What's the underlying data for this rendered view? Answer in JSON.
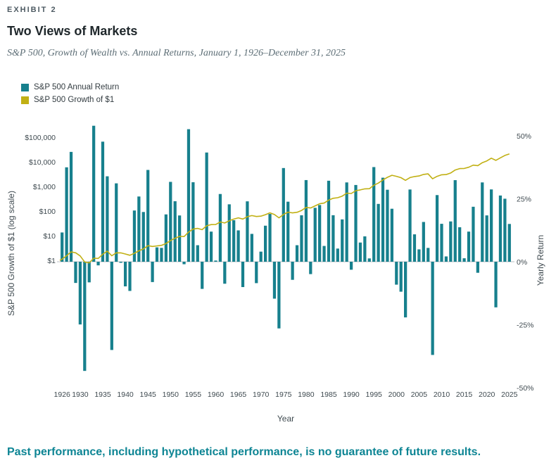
{
  "exhibit_label": "EXHIBIT 2",
  "title": "Two Views of Markets",
  "subtitle": "S&P 500, Growth of Wealth vs. Annual Returns, January 1, 1926–December 31, 2025",
  "footnote": "Past performance, including hypothetical performance, is no guarantee of future results.",
  "colors": {
    "bar": "#17808d",
    "line": "#c1b014",
    "footnote": "#0d8594",
    "zero_line": "#a7adb0"
  },
  "legend": {
    "items": [
      {
        "label": "S&P 500 Annual Return",
        "color": "#17808d"
      },
      {
        "label": "S&P 500 Growth of $1",
        "color": "#c1b014"
      }
    ]
  },
  "chart_data": {
    "type": "bar",
    "title": "Two Views of Markets",
    "x_start_year": 1926,
    "x_end_year": 2025,
    "series": [
      {
        "name": "S&P 500 Annual Return",
        "type": "bar",
        "axis": "right",
        "unit": "%",
        "values": [
          11.62,
          37.49,
          43.61,
          -8.42,
          -24.9,
          -43.34,
          -8.19,
          53.99,
          -1.44,
          47.67,
          33.92,
          -35.03,
          31.12,
          -0.41,
          -9.78,
          -11.59,
          20.34,
          25.9,
          19.75,
          36.44,
          -8.07,
          5.71,
          5.5,
          18.79,
          31.71,
          24.02,
          18.37,
          -0.99,
          52.62,
          31.56,
          6.56,
          -10.78,
          43.36,
          11.96,
          0.47,
          26.89,
          -8.73,
          22.8,
          16.48,
          12.45,
          -10.06,
          23.98,
          11.06,
          -8.5,
          4.01,
          14.31,
          18.98,
          -14.66,
          -26.47,
          37.2,
          23.84,
          -7.18,
          6.56,
          18.44,
          32.42,
          -4.91,
          21.41,
          22.51,
          6.27,
          32.16,
          18.47,
          5.23,
          16.81,
          31.49,
          -3.17,
          30.47,
          7.62,
          10.08,
          1.32,
          37.58,
          22.96,
          33.36,
          28.58,
          21.04,
          -9.1,
          -11.89,
          -22.1,
          28.68,
          10.88,
          4.91,
          15.79,
          5.49,
          -37.0,
          26.46,
          15.06,
          2.11,
          16.0,
          32.39,
          13.69,
          1.38,
          11.96,
          21.83,
          -4.38,
          31.49,
          18.4,
          28.71,
          -18.11,
          26.29,
          25.02,
          15.0
        ]
      },
      {
        "name": "S&P 500 Growth of $1",
        "type": "line",
        "axis": "left",
        "start_value": 1,
        "derived": "cumulative product of (1 + annual_return/100) starting at $1 on January 1, 1926, plotted on log scale"
      }
    ],
    "left_axis": {
      "label": "S&P 500 Growth of $1 (log scale)",
      "scale": "log",
      "tick_values": [
        1,
        10,
        100,
        1000,
        10000,
        100000
      ],
      "tick_labels": [
        "$1",
        "$10",
        "$100",
        "$1,000",
        "$10,000",
        "$100,000"
      ]
    },
    "right_axis": {
      "label": "Yearly Return",
      "scale": "linear",
      "range": [
        -50,
        50
      ],
      "tick_values": [
        -50,
        -25,
        0,
        25,
        50
      ],
      "tick_labels": [
        "-50%",
        "-25%",
        "0%",
        "25%",
        "50%"
      ]
    },
    "x_axis": {
      "label": "Year",
      "tick_values": [
        1926,
        1930,
        1935,
        1940,
        1945,
        1950,
        1955,
        1960,
        1965,
        1970,
        1975,
        1980,
        1985,
        1990,
        1995,
        2000,
        2005,
        2010,
        2015,
        2020,
        2025
      ]
    },
    "grid": false,
    "legend_position": "top-left"
  }
}
